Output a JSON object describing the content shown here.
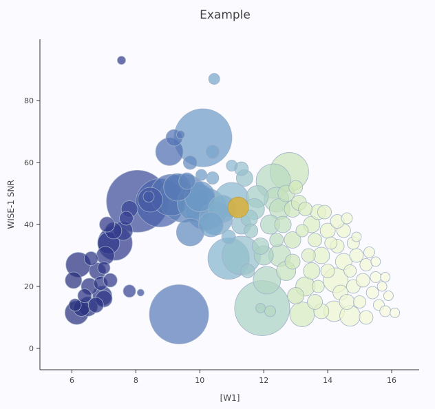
{
  "chart_data": {
    "type": "scatter",
    "title": "Example",
    "xlabel": "[W1]",
    "ylabel": "WISE-1 SNR",
    "xlim": [
      5,
      16.86
    ],
    "ylim": [
      -6.9,
      99.8
    ],
    "xticks": [
      6,
      8,
      10,
      12,
      14,
      16
    ],
    "yticks": [
      0,
      20,
      40,
      60,
      80
    ],
    "grid": false,
    "colorscale": [
      [
        5.5,
        "#252c78"
      ],
      [
        7.5,
        "#333a8c"
      ],
      [
        8.8,
        "#4a64ac"
      ],
      [
        10,
        "#6c98c6"
      ],
      [
        11,
        "#8ab8cf"
      ],
      [
        12,
        "#add4c4"
      ],
      [
        13,
        "#d2e9ba"
      ],
      [
        14,
        "#eaf4cc"
      ],
      [
        16,
        "#f8fadf"
      ]
    ],
    "highlight_color": "#d9b13a",
    "points_note_columns": [
      "x",
      "y",
      "size"
    ],
    "points": [
      [
        6.2,
        27,
        18
      ],
      [
        6.05,
        22,
        12
      ],
      [
        6.15,
        11.5,
        17
      ],
      [
        6.3,
        13,
        12
      ],
      [
        6.5,
        13.5,
        14
      ],
      [
        6.1,
        14,
        9
      ],
      [
        6.4,
        17,
        10
      ],
      [
        6.55,
        20,
        12
      ],
      [
        6.6,
        29,
        10
      ],
      [
        6.8,
        25,
        12
      ],
      [
        6.9,
        21,
        10
      ],
      [
        6.95,
        17,
        14
      ],
      [
        7.0,
        16,
        12
      ],
      [
        6.75,
        14,
        11
      ],
      [
        7.05,
        30,
        13
      ],
      [
        7.15,
        34,
        16
      ],
      [
        7.1,
        40,
        11
      ],
      [
        7.3,
        38,
        12
      ],
      [
        7.35,
        34,
        25
      ],
      [
        7.2,
        22,
        10
      ],
      [
        7.0,
        26,
        9
      ],
      [
        7.6,
        38,
        14
      ],
      [
        7.7,
        42,
        10
      ],
      [
        7.8,
        45,
        12
      ],
      [
        7.8,
        18.5,
        9
      ],
      [
        8.15,
        18,
        5
      ],
      [
        7.55,
        93,
        6
      ],
      [
        8.05,
        47.5,
        45
      ],
      [
        8.45,
        48,
        18
      ],
      [
        8.4,
        49,
        8
      ],
      [
        8.75,
        47,
        35
      ],
      [
        9.1,
        49.5,
        30
      ],
      [
        9.5,
        48.5,
        35
      ],
      [
        9.9,
        47,
        28
      ],
      [
        10.2,
        45,
        30
      ],
      [
        10.0,
        49,
        22
      ],
      [
        9.3,
        52,
        20
      ],
      [
        9.6,
        54,
        12
      ],
      [
        9.7,
        37.5,
        20
      ],
      [
        9.35,
        11,
        43
      ],
      [
        10.1,
        68,
        42
      ],
      [
        9.05,
        63.5,
        20
      ],
      [
        9.2,
        68,
        12
      ],
      [
        9.4,
        69,
        6
      ],
      [
        9.7,
        60,
        10
      ],
      [
        10.4,
        63.5,
        10
      ],
      [
        10.05,
        56,
        8
      ],
      [
        10.4,
        55,
        9
      ],
      [
        10.5,
        42,
        24
      ],
      [
        10.35,
        40,
        18
      ],
      [
        10.7,
        45,
        20
      ],
      [
        10.45,
        87,
        8
      ],
      [
        10.9,
        29,
        30
      ],
      [
        11.3,
        30,
        28
      ],
      [
        11.0,
        48,
        25
      ],
      [
        10.9,
        36,
        10
      ],
      [
        11.3,
        40,
        14
      ],
      [
        11.0,
        59,
        8
      ],
      [
        11.3,
        58,
        10
      ],
      [
        11.4,
        55,
        12
      ],
      [
        11.55,
        42,
        12
      ],
      [
        11.7,
        45,
        15
      ],
      [
        11.8,
        49,
        16
      ],
      [
        11.6,
        38,
        10
      ],
      [
        11.9,
        33,
        12
      ],
      [
        11.5,
        25,
        10
      ],
      [
        11.95,
        13,
        40
      ],
      [
        12.1,
        22,
        20
      ],
      [
        11.9,
        13,
        7
      ],
      [
        12.2,
        12,
        8
      ],
      [
        12.3,
        54,
        25
      ],
      [
        12.8,
        57,
        28
      ],
      [
        12.4,
        48,
        18
      ],
      [
        12.5,
        45,
        15
      ],
      [
        12.2,
        40,
        14
      ],
      [
        12.6,
        40,
        12
      ],
      [
        12.0,
        30,
        14
      ],
      [
        12.5,
        30,
        16
      ],
      [
        12.7,
        25,
        14
      ],
      [
        12.9,
        35,
        12
      ],
      [
        12.4,
        35,
        10
      ],
      [
        12.7,
        50,
        12
      ],
      [
        13.0,
        52,
        10
      ],
      [
        12.9,
        45,
        12
      ],
      [
        13.1,
        47,
        11
      ],
      [
        13.2,
        11,
        18
      ],
      [
        13.3,
        20,
        14
      ],
      [
        13.0,
        17,
        12
      ],
      [
        13.5,
        25,
        12
      ],
      [
        13.4,
        30,
        10
      ],
      [
        13.6,
        35,
        10
      ],
      [
        13.5,
        40,
        12
      ],
      [
        13.3,
        45,
        10
      ],
      [
        13.7,
        44,
        11
      ],
      [
        13.9,
        44,
        10
      ],
      [
        14.0,
        38,
        11
      ],
      [
        13.8,
        30,
        12
      ],
      [
        14.0,
        25,
        10
      ],
      [
        14.2,
        12,
        15
      ],
      [
        13.8,
        12,
        11
      ],
      [
        14.25,
        22,
        18
      ],
      [
        14.4,
        18,
        11
      ],
      [
        14.5,
        28,
        12
      ],
      [
        14.3,
        33,
        10
      ],
      [
        14.5,
        38,
        10
      ],
      [
        14.3,
        41,
        10
      ],
      [
        14.7,
        10.5,
        15
      ],
      [
        14.6,
        15,
        11
      ],
      [
        14.8,
        20,
        10
      ],
      [
        14.7,
        25,
        9
      ],
      [
        14.9,
        30,
        10
      ],
      [
        14.8,
        34,
        9
      ],
      [
        15.0,
        15,
        9
      ],
      [
        15.1,
        22,
        10
      ],
      [
        15.2,
        27,
        9
      ],
      [
        15.3,
        31,
        8
      ],
      [
        15.2,
        10,
        10
      ],
      [
        15.4,
        18,
        9
      ],
      [
        15.5,
        23,
        8
      ],
      [
        15.6,
        14,
        8
      ],
      [
        15.7,
        20,
        7
      ],
      [
        15.8,
        23,
        7
      ],
      [
        15.9,
        17,
        7
      ],
      [
        16.1,
        11.5,
        7
      ],
      [
        15.8,
        12,
        8
      ],
      [
        15.5,
        28,
        7
      ],
      [
        13.6,
        15,
        11
      ],
      [
        13.2,
        38,
        9
      ],
      [
        12.9,
        28,
        11
      ],
      [
        13.7,
        20,
        9
      ],
      [
        14.1,
        34,
        9
      ],
      [
        14.6,
        42,
        8
      ],
      [
        14.9,
        36,
        7
      ]
    ],
    "highlight": [
      11.2,
      45.5,
      15
    ]
  }
}
